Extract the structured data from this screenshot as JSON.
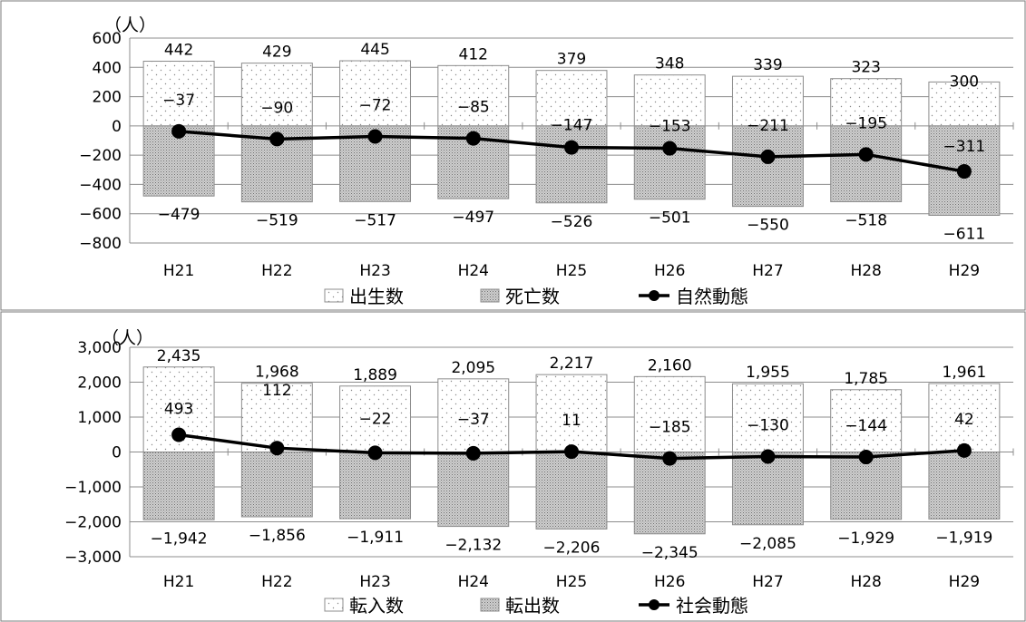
{
  "chart_data": [
    {
      "type": "bar",
      "unit_label": "（人）",
      "categories": [
        "H21",
        "H22",
        "H23",
        "H24",
        "H25",
        "H26",
        "H27",
        "H28",
        "H29"
      ],
      "ylim": [
        -800,
        600
      ],
      "yticks": [
        600,
        400,
        200,
        0,
        -200,
        -400,
        -600,
        -800
      ],
      "ytick_labels": [
        "600",
        "400",
        "200",
        "0",
        "−200",
        "−400",
        "−600",
        "−800"
      ],
      "grid": true,
      "legend_position": "bottom",
      "series": [
        {
          "name": "出生数",
          "kind": "bar",
          "pattern": "dots",
          "values": [
            442,
            429,
            445,
            412,
            379,
            348,
            339,
            323,
            300
          ],
          "labels": [
            "442",
            "429",
            "445",
            "412",
            "379",
            "348",
            "339",
            "323",
            "300"
          ]
        },
        {
          "name": "死亡数",
          "kind": "bar",
          "pattern": "cross",
          "values": [
            -479,
            -519,
            -517,
            -497,
            -526,
            -501,
            -550,
            -518,
            -611
          ],
          "labels": [
            "−479",
            "−519",
            "−517",
            "−497",
            "−526",
            "−501",
            "−550",
            "−518",
            "−611"
          ]
        },
        {
          "name": "自然動態",
          "kind": "line",
          "values": [
            -37,
            -90,
            -72,
            -85,
            -147,
            -153,
            -211,
            -195,
            -311
          ],
          "labels": [
            "−37",
            "−90",
            "−72",
            "−85",
            "−147",
            "−153",
            "−211",
            "−195",
            "−311"
          ]
        }
      ]
    },
    {
      "type": "bar",
      "unit_label": "（人）",
      "categories": [
        "H21",
        "H22",
        "H23",
        "H24",
        "H25",
        "H26",
        "H27",
        "H28",
        "H29"
      ],
      "ylim": [
        -3000,
        3000
      ],
      "yticks": [
        3000,
        2000,
        1000,
        0,
        -1000,
        -2000,
        -3000
      ],
      "ytick_labels": [
        "3,000",
        "2,000",
        "1,000",
        "0",
        "−1,000",
        "−2,000",
        "−3,000"
      ],
      "grid": true,
      "legend_position": "bottom",
      "series": [
        {
          "name": "転入数",
          "kind": "bar",
          "pattern": "dots",
          "values": [
            2435,
            1968,
            1889,
            2095,
            2217,
            2160,
            1955,
            1785,
            1961
          ],
          "labels": [
            "2,435",
            "1,968",
            "1,889",
            "2,095",
            "2,217",
            "2,160",
            "1,955",
            "1,785",
            "1,961"
          ]
        },
        {
          "name": "転出数",
          "kind": "bar",
          "pattern": "cross",
          "values": [
            -1942,
            -1856,
            -1911,
            -2132,
            -2206,
            -2345,
            -2085,
            -1929,
            -1919
          ],
          "labels": [
            "−1,942",
            "−1,856",
            "−1,911",
            "−2,132",
            "−2,206",
            "−2,345",
            "−2,085",
            "−1,929",
            "−1,919"
          ]
        },
        {
          "name": "社会動態",
          "kind": "line",
          "values": [
            493,
            112,
            -22,
            -37,
            11,
            -185,
            -130,
            -144,
            42
          ],
          "labels": [
            "493",
            "112",
            "−22",
            "−37",
            "11",
            "−185",
            "−130",
            "−144",
            "42"
          ]
        }
      ]
    }
  ]
}
